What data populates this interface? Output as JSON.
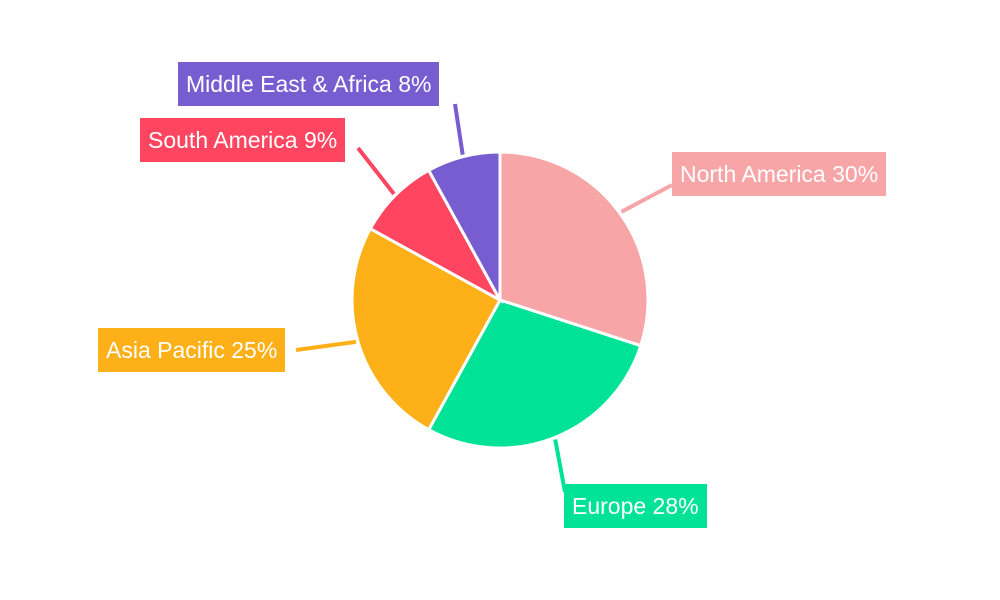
{
  "chart_data": {
    "type": "pie",
    "title": "",
    "categories": [
      "North America",
      "Europe",
      "Asia Pacific",
      "South America",
      "Middle East & Africa"
    ],
    "values": [
      30,
      28,
      25,
      9,
      8
    ],
    "unit": "%",
    "colors": [
      "#f8a5a8",
      "#00e396",
      "#feb019",
      "#ff4560",
      "#775dd0"
    ],
    "labels": [
      "North America 30%",
      "Europe 28%",
      "Asia Pacific 25%",
      "South America 9%",
      "Middle East & Africa 8%"
    ],
    "start_angle_deg": 0,
    "direction": "clockwise",
    "legend": "none (callout labels)"
  }
}
